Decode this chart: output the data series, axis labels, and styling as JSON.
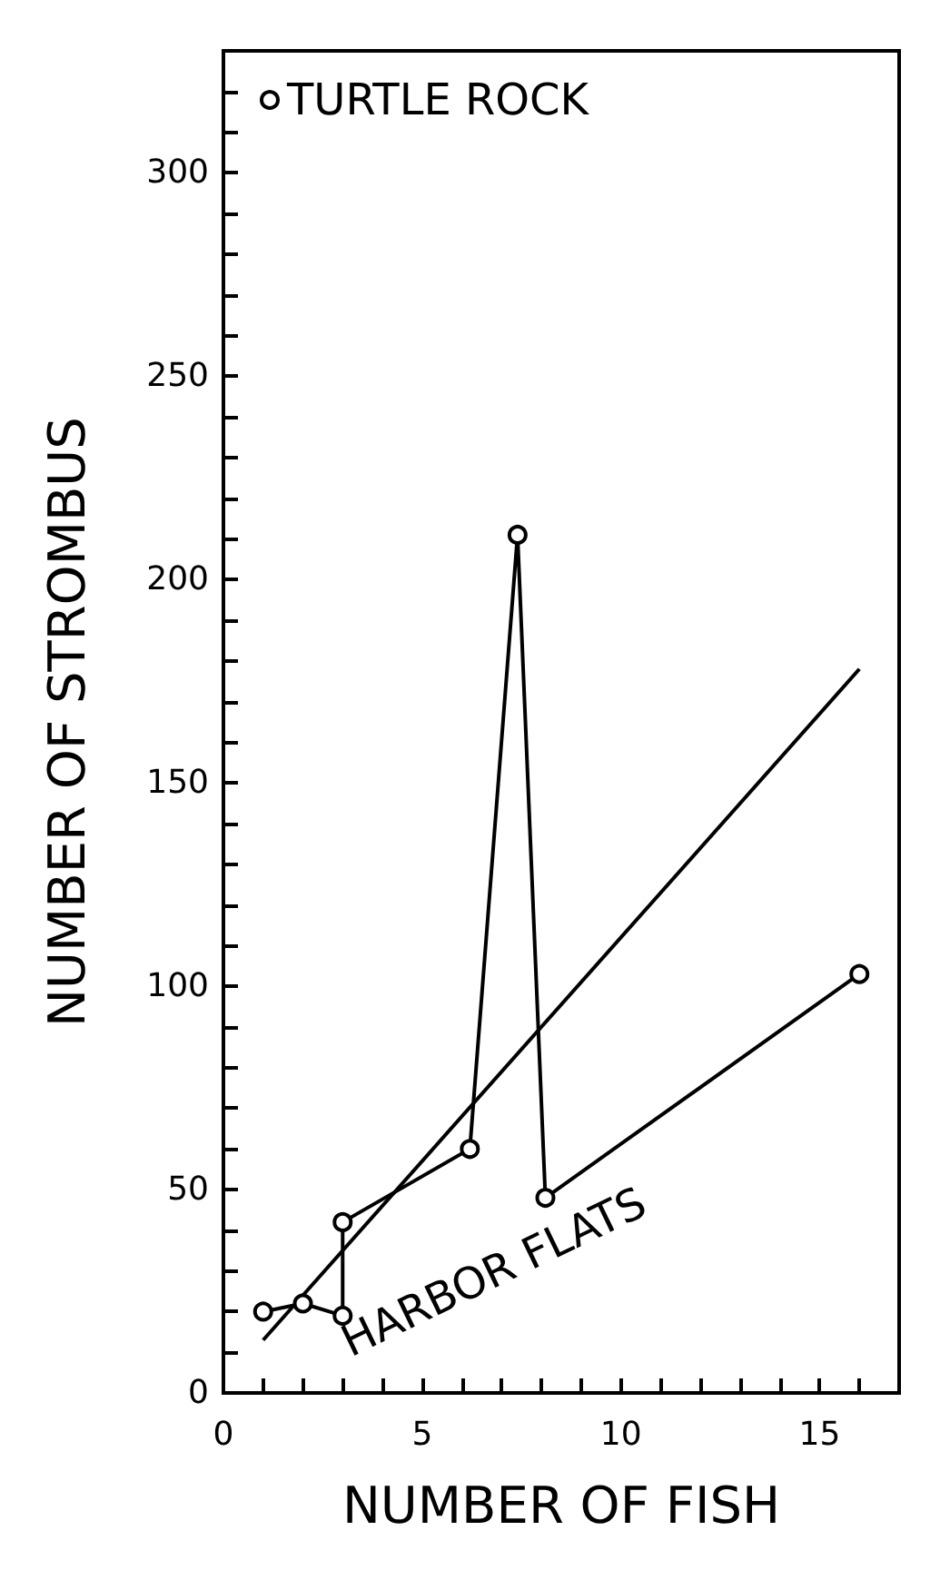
{
  "chart_data": {
    "type": "line",
    "xlabel": "NUMBER OF FISH",
    "ylabel": "NUMBER OF STROMBUS",
    "xlim": [
      0,
      17
    ],
    "ylim": [
      0,
      330
    ],
    "xticks": [
      0,
      {
        "value": 1,
        "label": null
      },
      {
        "value": 2,
        "label": null
      },
      {
        "value": 3,
        "label": null
      },
      {
        "value": 4,
        "label": null
      },
      5,
      {
        "value": 6,
        "label": null
      },
      {
        "value": 7,
        "label": null
      },
      {
        "value": 8,
        "label": null
      },
      {
        "value": 9,
        "label": null
      },
      10,
      {
        "value": 11,
        "label": null
      },
      {
        "value": 12,
        "label": null
      },
      {
        "value": 13,
        "label": null
      },
      {
        "value": 14,
        "label": null
      },
      15,
      {
        "value": 16,
        "label": null
      }
    ],
    "yticks": [
      0,
      {
        "value": 10,
        "label": null
      },
      {
        "value": 20,
        "label": null
      },
      {
        "value": 30,
        "label": null
      },
      {
        "value": 40,
        "label": null
      },
      50,
      {
        "value": 60,
        "label": null
      },
      {
        "value": 70,
        "label": null
      },
      {
        "value": 80,
        "label": null
      },
      {
        "value": 90,
        "label": null
      },
      100,
      {
        "value": 110,
        "label": null
      },
      {
        "value": 120,
        "label": null
      },
      {
        "value": 130,
        "label": null
      },
      {
        "value": 140,
        "label": null
      },
      150,
      {
        "value": 160,
        "label": null
      },
      {
        "value": 170,
        "label": null
      },
      {
        "value": 180,
        "label": null
      },
      {
        "value": 190,
        "label": null
      },
      200,
      {
        "value": 210,
        "label": null
      },
      {
        "value": 220,
        "label": null
      },
      {
        "value": 230,
        "label": null
      },
      {
        "value": 240,
        "label": null
      },
      250,
      {
        "value": 260,
        "label": null
      },
      {
        "value": 270,
        "label": null
      },
      {
        "value": 280,
        "label": null
      },
      {
        "value": 290,
        "label": null
      },
      300,
      {
        "value": 310,
        "label": null
      },
      {
        "value": 320,
        "label": null
      }
    ],
    "series": [
      {
        "name": "TURTLE ROCK",
        "color": "#000000",
        "x": [
          1,
          2,
          3,
          3,
          6.2,
          7.4,
          8.1,
          16
        ],
        "values": [
          20,
          22,
          19,
          42,
          60,
          211,
          48,
          103
        ],
        "marker": "circle"
      },
      {
        "type": "line",
        "color": "#000000",
        "x": [
          1,
          16
        ],
        "values": [
          13,
          178
        ],
        "marker": "none"
      }
    ],
    "annotations": [
      "HARBOR FLATS"
    ],
    "legend": "top left",
    "grid": false,
    "line_style": "solid"
  }
}
